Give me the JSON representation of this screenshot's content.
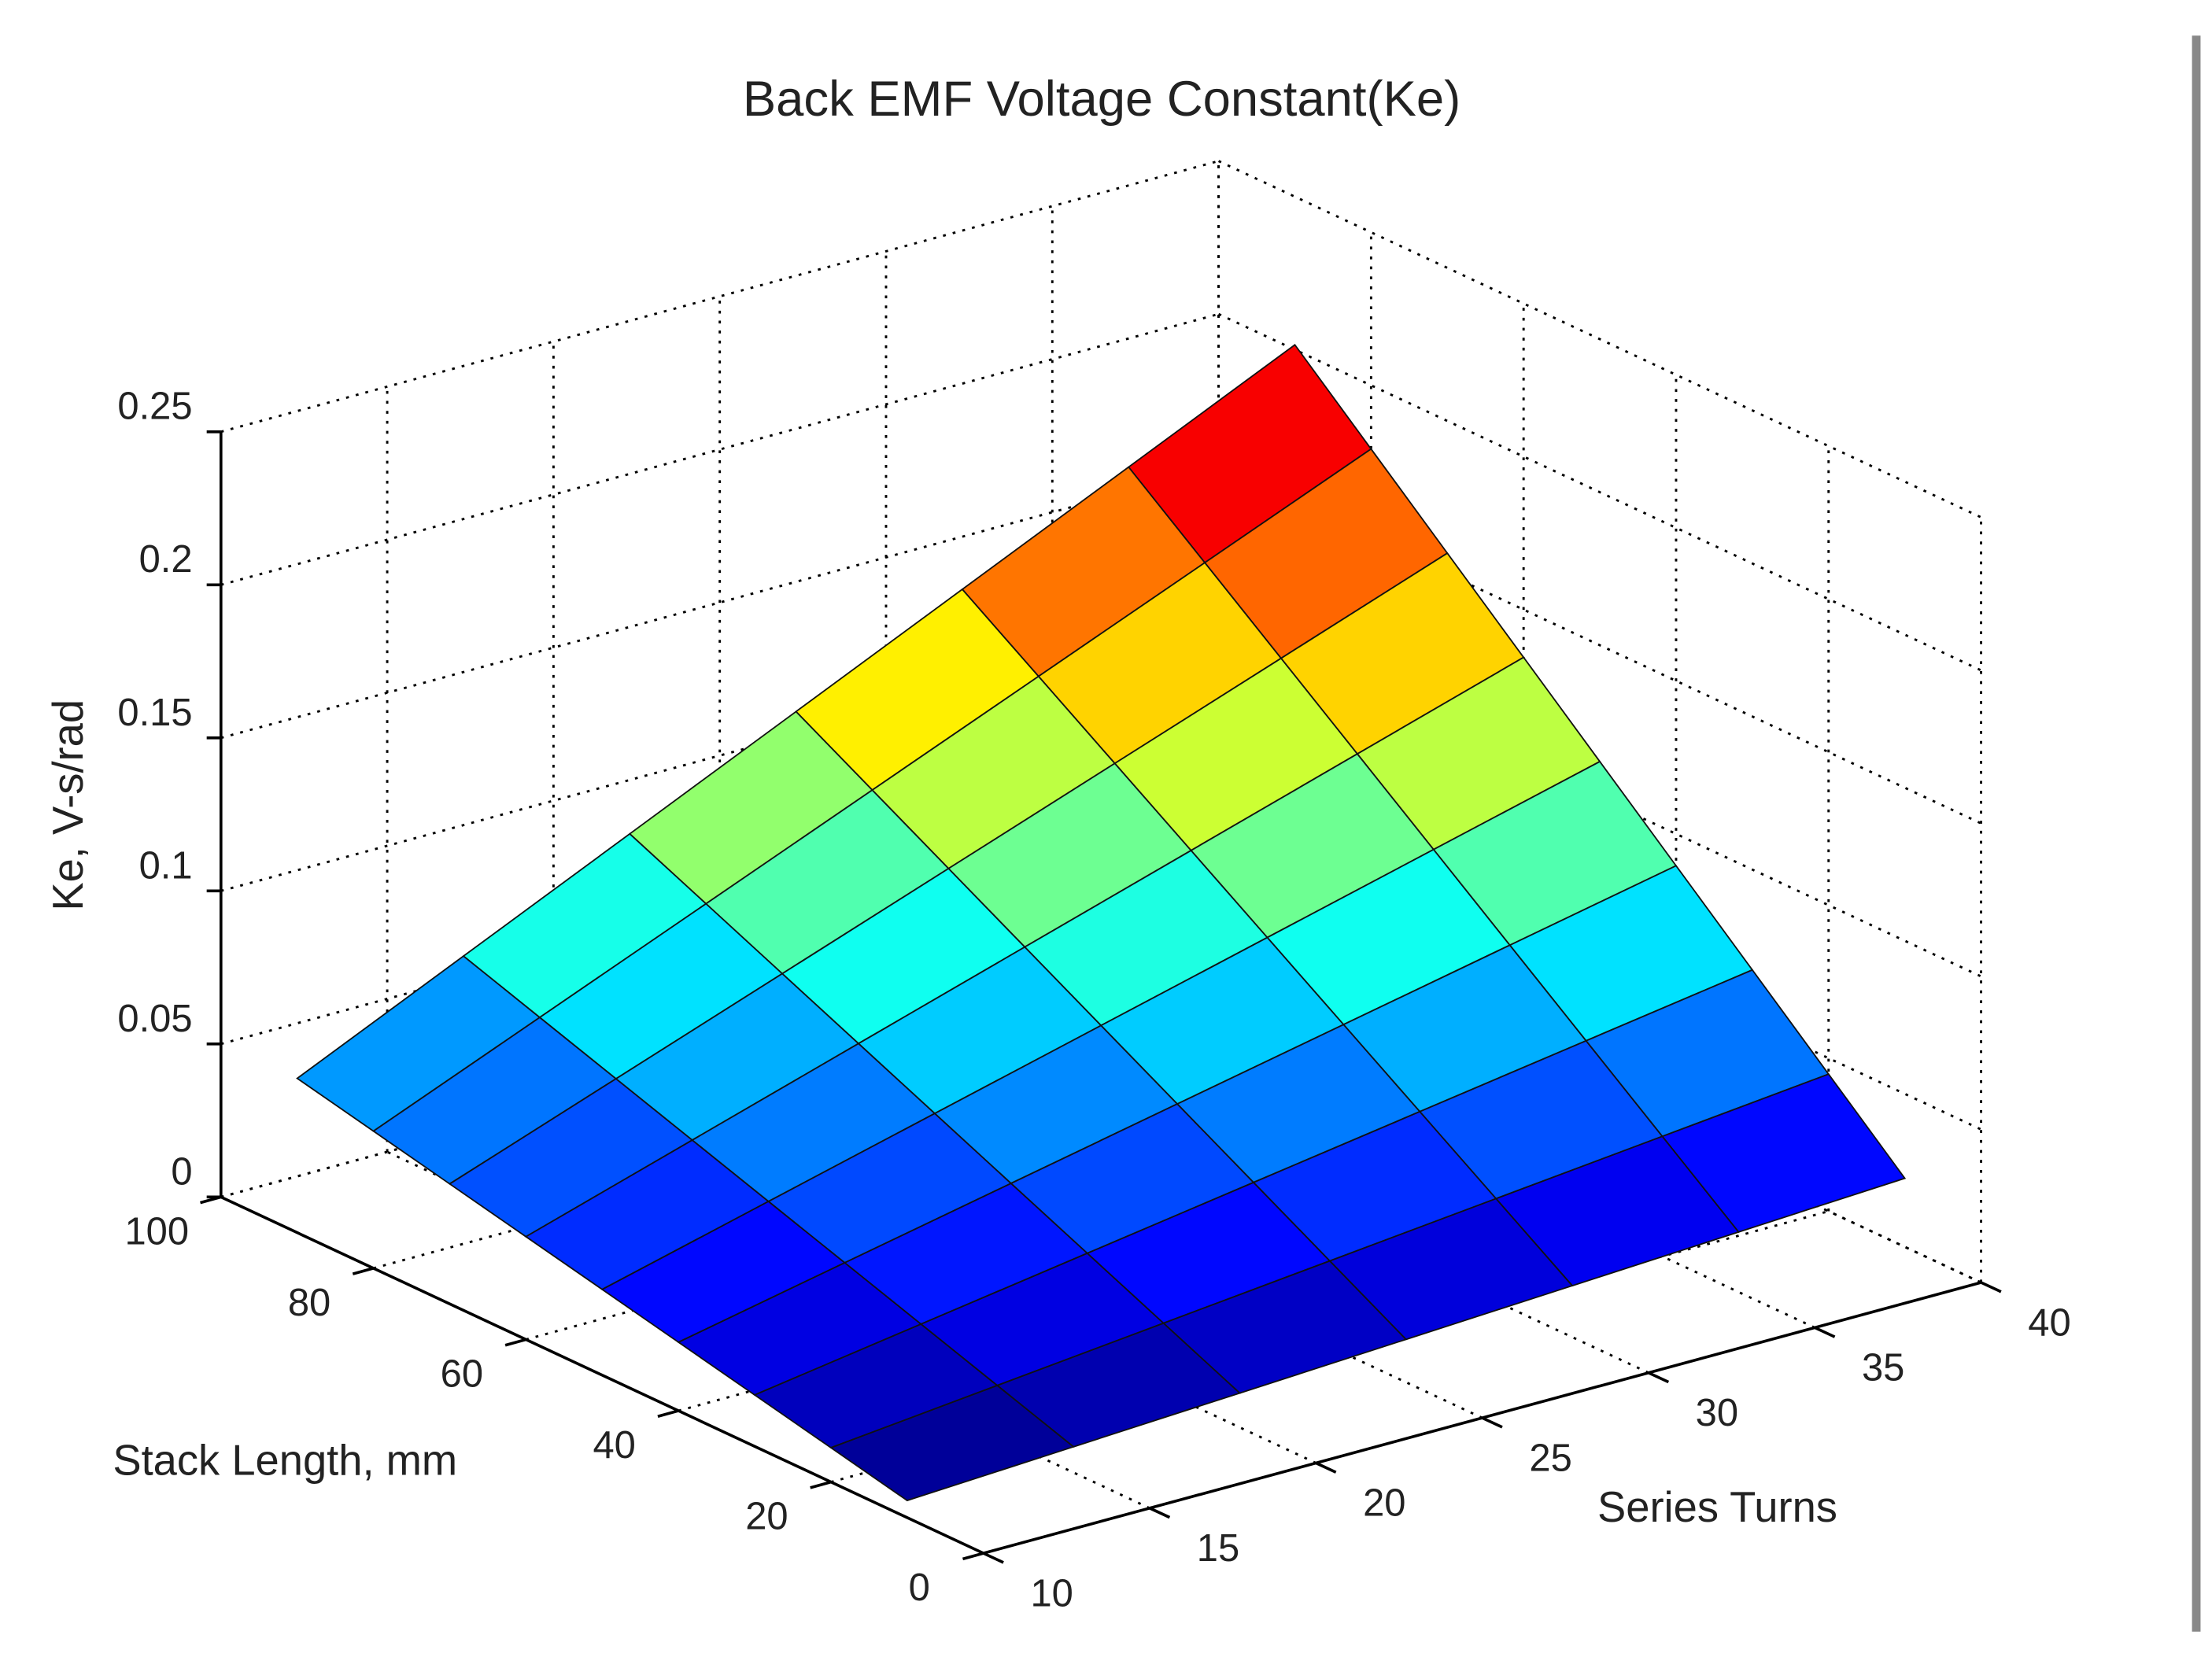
{
  "chart_data": {
    "type": "surface",
    "title": "Back EMF Voltage Constant(Ke)",
    "xlabel": "Series Turns",
    "ylabel": "Stack Length, mm",
    "zlabel": "Ke, V-s/rad",
    "x": [
      10,
      15,
      20,
      25,
      30,
      35,
      40
    ],
    "y": [
      10,
      20,
      30,
      40,
      50,
      60,
      70,
      80,
      90
    ],
    "values": [
      [
        0.0056,
        0.0084,
        0.0112,
        0.014,
        0.0168,
        0.0196,
        0.0224
      ],
      [
        0.0112,
        0.0168,
        0.0224,
        0.028,
        0.0336,
        0.0392,
        0.0448
      ],
      [
        0.0168,
        0.0252,
        0.0336,
        0.042,
        0.0504,
        0.0588,
        0.0672
      ],
      [
        0.0224,
        0.0336,
        0.0448,
        0.056,
        0.0672,
        0.0784,
        0.0896
      ],
      [
        0.028,
        0.042,
        0.056,
        0.07,
        0.084,
        0.098,
        0.112
      ],
      [
        0.0336,
        0.0504,
        0.0672,
        0.084,
        0.1008,
        0.1176,
        0.1344
      ],
      [
        0.0392,
        0.0588,
        0.0784,
        0.098,
        0.1176,
        0.1372,
        0.1568
      ],
      [
        0.0448,
        0.0672,
        0.0896,
        0.112,
        0.1344,
        0.1568,
        0.1792
      ],
      [
        0.0504,
        0.0756,
        0.1008,
        0.126,
        0.1512,
        0.1764,
        0.2016
      ]
    ],
    "colormap": "jet",
    "xlim": [
      10,
      40
    ],
    "xticks": [
      10,
      15,
      20,
      25,
      30,
      35,
      40
    ],
    "ylim": [
      0,
      100
    ],
    "yticks": [
      0,
      20,
      40,
      60,
      80,
      100
    ],
    "zlim": [
      0,
      0.25
    ],
    "zticks": [
      0,
      0.05,
      0.1,
      0.15,
      0.2,
      0.25
    ],
    "grid": true
  }
}
